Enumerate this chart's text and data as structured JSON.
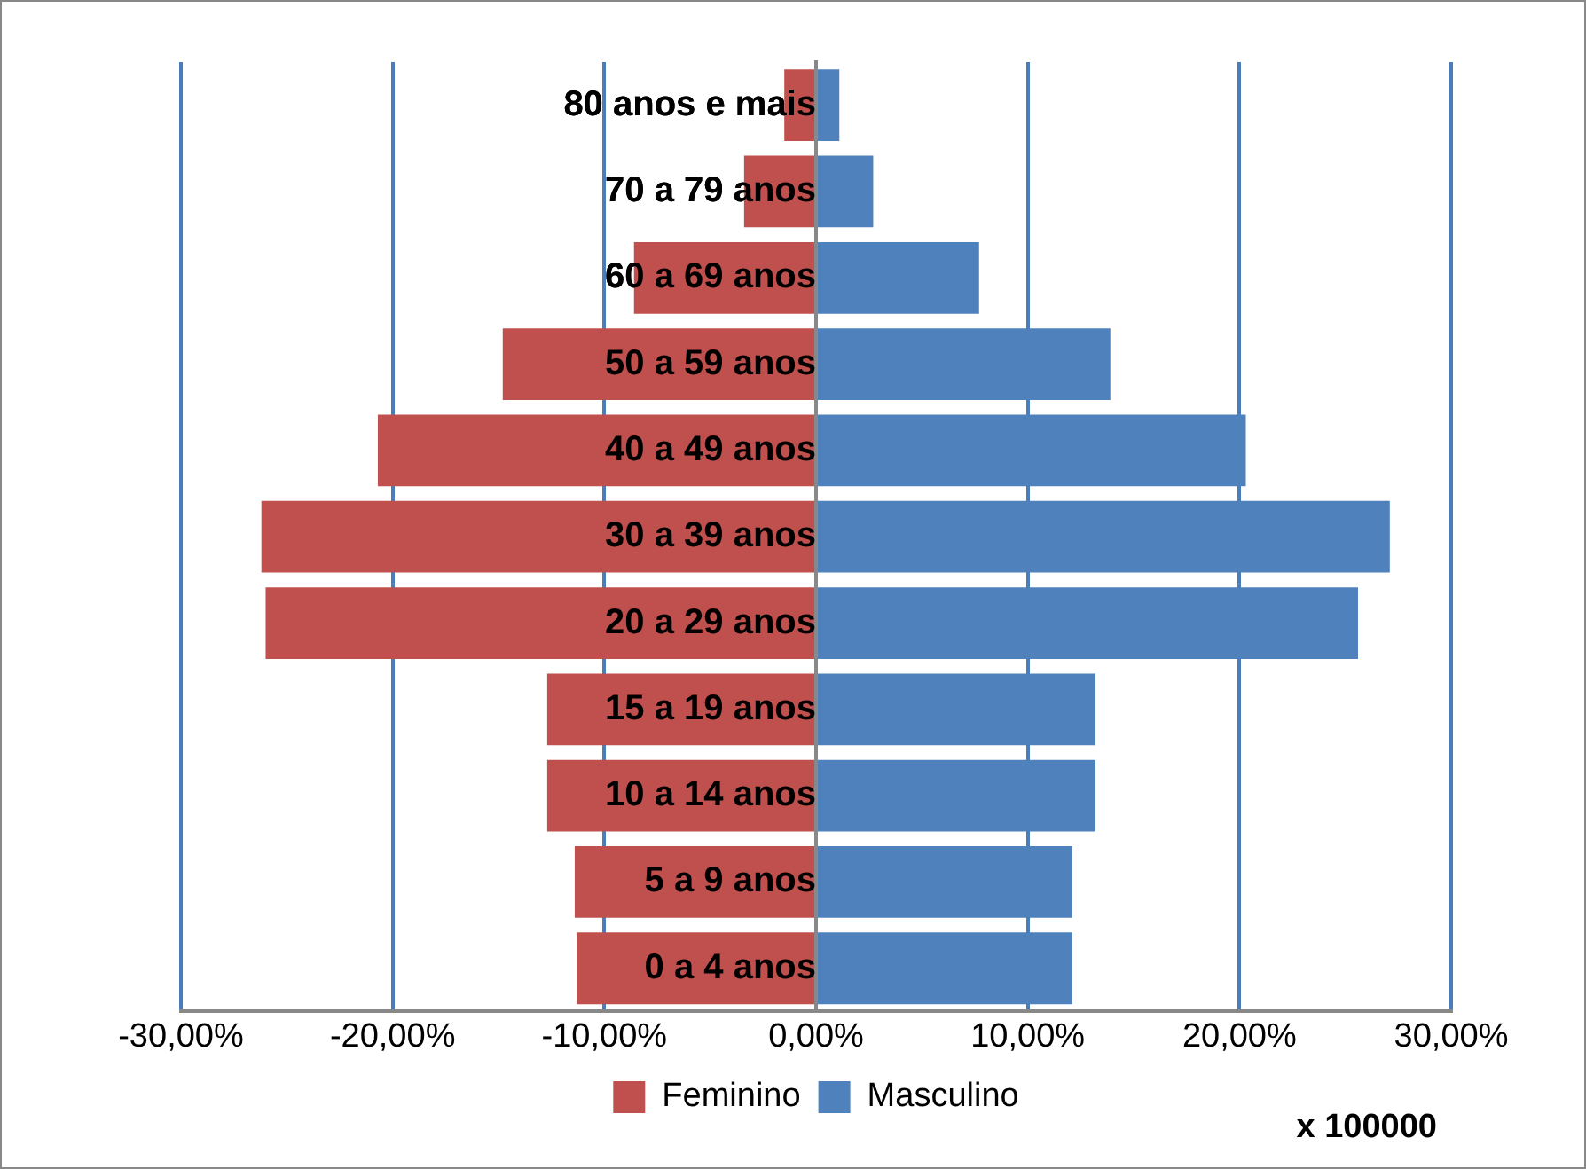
{
  "chart_data": {
    "type": "bar",
    "orientation": "horizontal",
    "stacked": true,
    "categories": [
      "80 anos e mais",
      "70 a 79 anos",
      "60 a 69 anos",
      "50 a 59 anos",
      "40 a 49 anos",
      "30 a 39 anos",
      "20 a 29 anos",
      "15 a 19 anos",
      "10 a 14 anos",
      "5 a 9 anos",
      "0 a 4 anos"
    ],
    "series": [
      {
        "name": "Feminino",
        "color": "#c0504d",
        "values": [
          -1.5,
          -3.4,
          -8.6,
          -14.8,
          -20.7,
          -26.2,
          -26.0,
          -12.7,
          -12.7,
          -11.4,
          -11.3
        ]
      },
      {
        "name": "Masculino",
        "color": "#4f81bd",
        "values": [
          1.1,
          2.7,
          7.7,
          13.9,
          20.3,
          27.1,
          25.6,
          13.2,
          13.2,
          12.1,
          12.1
        ]
      }
    ],
    "xlim": [
      -30,
      30
    ],
    "xticks": [
      {
        "value": -30,
        "label": "-30,00%"
      },
      {
        "value": -20,
        "label": "-20,00%"
      },
      {
        "value": -10,
        "label": "-10,00%"
      },
      {
        "value": 0,
        "label": "0,00%"
      },
      {
        "value": 10,
        "label": "10,00%"
      },
      {
        "value": 20,
        "label": "20,00%"
      },
      {
        "value": 30,
        "label": "30,00%"
      }
    ],
    "grid": "x",
    "legend": "bottom",
    "annotations": [
      "x 100000"
    ]
  }
}
